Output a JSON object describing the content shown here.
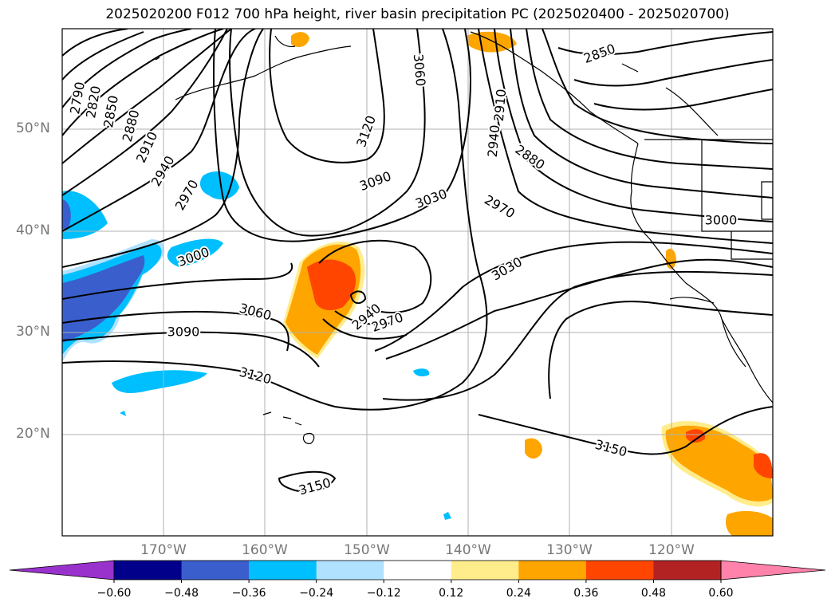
{
  "title": "2025020200 F012 700 hPa height, river basin precipitation PC (2025020400 - 2025020700)",
  "lat_labels": [
    "50°N",
    "40°N",
    "30°N",
    "20°N"
  ],
  "lon_labels": [
    "170°W",
    "160°W",
    "150°W",
    "140°W",
    "130°W",
    "120°W"
  ],
  "contour_labels": [
    "2790",
    "2820",
    "2850",
    "2880",
    "2910",
    "2940",
    "2970",
    "3000",
    "3060",
    "3090",
    "3120",
    "3060",
    "3120",
    "3090",
    "3030",
    "2970",
    "2940",
    "3030",
    "2970",
    "3000",
    "2850",
    "2880",
    "2910",
    "2940",
    "3150",
    "3150"
  ],
  "colorbar": {
    "colors": [
      "#9932cc",
      "#00008b",
      "#3a5fcd",
      "#00bfff",
      "#b0e2ff",
      "#ffffff",
      "#ffec8b",
      "#ffa500",
      "#ff4500",
      "#b22222",
      "#ff82ab"
    ],
    "tick_labels": [
      "−0.60",
      "−0.48",
      "−0.36",
      "−0.24",
      "−0.12",
      "0.12",
      "0.24",
      "0.36",
      "0.48",
      "0.60"
    ]
  }
}
